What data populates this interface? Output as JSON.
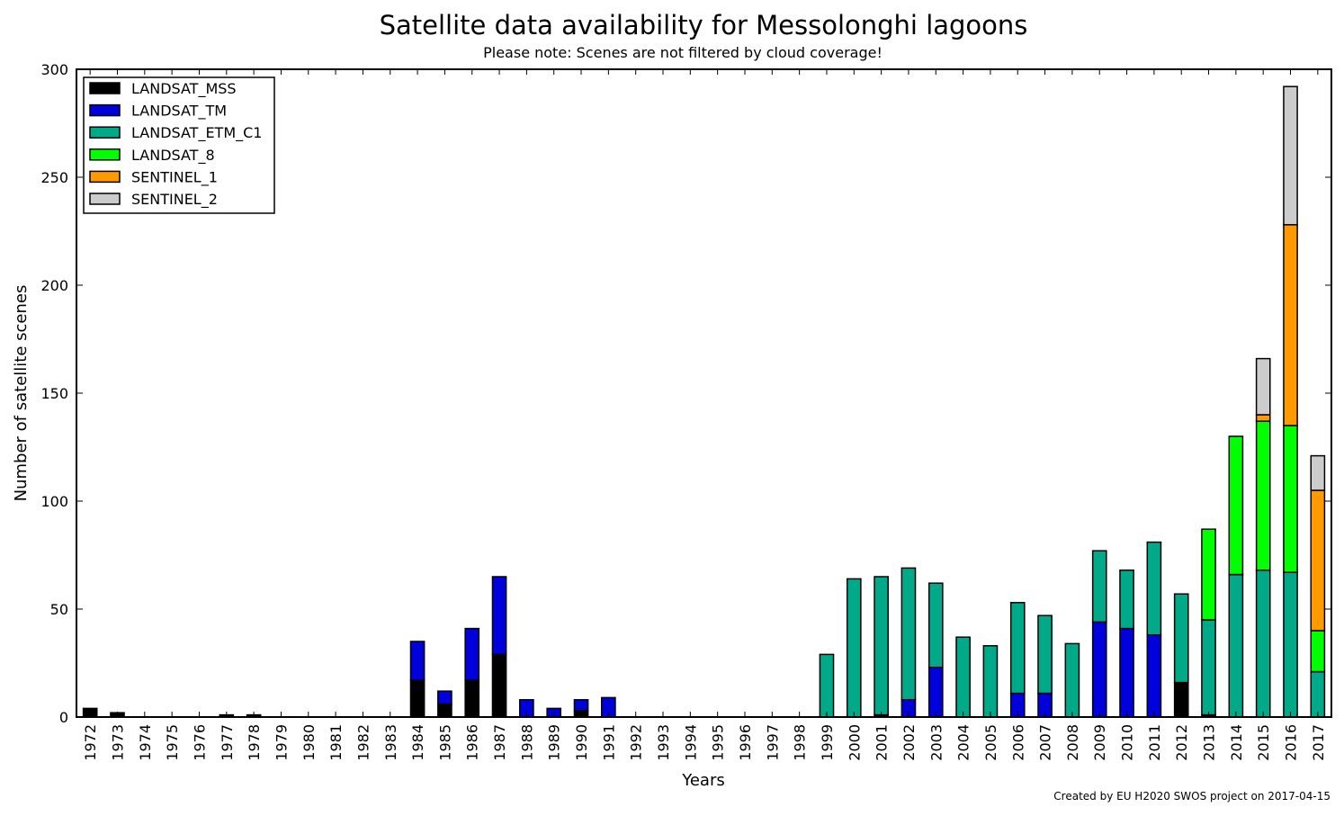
{
  "chart_data": {
    "type": "bar",
    "stacked": true,
    "title": "Satellite data availability for Messolonghi lagoons",
    "subtitle": "Please note: Scenes are not filtered by cloud coverage!",
    "xlabel": "Years",
    "ylabel": "Number of satellite scenes",
    "ylim": [
      0,
      300
    ],
    "yticks": [
      "0",
      "50",
      "100",
      "150",
      "200",
      "250",
      "300"
    ],
    "legend_position": "top-left",
    "grid": false,
    "footer": "Created by EU H2020 SWOS project on 2017-04-15",
    "categories": [
      "1972",
      "1973",
      "1974",
      "1975",
      "1976",
      "1977",
      "1978",
      "1979",
      "1980",
      "1981",
      "1982",
      "1983",
      "1984",
      "1985",
      "1986",
      "1987",
      "1988",
      "1989",
      "1990",
      "1991",
      "1992",
      "1993",
      "1994",
      "1995",
      "1996",
      "1997",
      "1998",
      "1999",
      "2000",
      "2001",
      "2002",
      "2003",
      "2004",
      "2005",
      "2006",
      "2007",
      "2008",
      "2009",
      "2010",
      "2011",
      "2012",
      "2013",
      "2014",
      "2015",
      "2016",
      "2017"
    ],
    "series": [
      {
        "name": "LANDSAT_MSS",
        "color": "#000000",
        "values": [
          4,
          2,
          0,
          0,
          0,
          1,
          1,
          0,
          0,
          0,
          0,
          0,
          17,
          6,
          17,
          29,
          0,
          0,
          3,
          0,
          0,
          0,
          0,
          0,
          0,
          0,
          0,
          0,
          0,
          1,
          0,
          0,
          0,
          0,
          0,
          0,
          0,
          0,
          0,
          0,
          16,
          1,
          0,
          0,
          0,
          0
        ]
      },
      {
        "name": "LANDSAT_TM",
        "color": "#0000dd",
        "values": [
          0,
          0,
          0,
          0,
          0,
          0,
          0,
          0,
          0,
          0,
          0,
          0,
          18,
          6,
          24,
          36,
          8,
          4,
          5,
          9,
          0,
          0,
          0,
          0,
          0,
          0,
          0,
          0,
          0,
          0,
          8,
          23,
          0,
          0,
          11,
          11,
          0,
          44,
          41,
          38,
          0,
          0,
          0,
          0,
          0,
          0
        ]
      },
      {
        "name": "LANDSAT_ETM_C1",
        "color": "#00aa88",
        "values": [
          0,
          0,
          0,
          0,
          0,
          0,
          0,
          0,
          0,
          0,
          0,
          0,
          0,
          0,
          0,
          0,
          0,
          0,
          0,
          0,
          0,
          0,
          0,
          0,
          0,
          0,
          0,
          29,
          64,
          64,
          61,
          39,
          37,
          33,
          42,
          36,
          34,
          33,
          27,
          43,
          41,
          44,
          66,
          68,
          67,
          21
        ]
      },
      {
        "name": "LANDSAT_8",
        "color": "#00ff00",
        "values": [
          0,
          0,
          0,
          0,
          0,
          0,
          0,
          0,
          0,
          0,
          0,
          0,
          0,
          0,
          0,
          0,
          0,
          0,
          0,
          0,
          0,
          0,
          0,
          0,
          0,
          0,
          0,
          0,
          0,
          0,
          0,
          0,
          0,
          0,
          0,
          0,
          0,
          0,
          0,
          0,
          0,
          42,
          64,
          69,
          68,
          19
        ]
      },
      {
        "name": "SENTINEL_1",
        "color": "#ff9900",
        "values": [
          0,
          0,
          0,
          0,
          0,
          0,
          0,
          0,
          0,
          0,
          0,
          0,
          0,
          0,
          0,
          0,
          0,
          0,
          0,
          0,
          0,
          0,
          0,
          0,
          0,
          0,
          0,
          0,
          0,
          0,
          0,
          0,
          0,
          0,
          0,
          0,
          0,
          0,
          0,
          0,
          0,
          0,
          0,
          3,
          93,
          65
        ]
      },
      {
        "name": "SENTINEL_2",
        "color": "#cccccc",
        "values": [
          0,
          0,
          0,
          0,
          0,
          0,
          0,
          0,
          0,
          0,
          0,
          0,
          0,
          0,
          0,
          0,
          0,
          0,
          0,
          0,
          0,
          0,
          0,
          0,
          0,
          0,
          0,
          0,
          0,
          0,
          0,
          0,
          0,
          0,
          0,
          0,
          0,
          0,
          0,
          0,
          0,
          0,
          0,
          26,
          64,
          16
        ]
      }
    ]
  }
}
